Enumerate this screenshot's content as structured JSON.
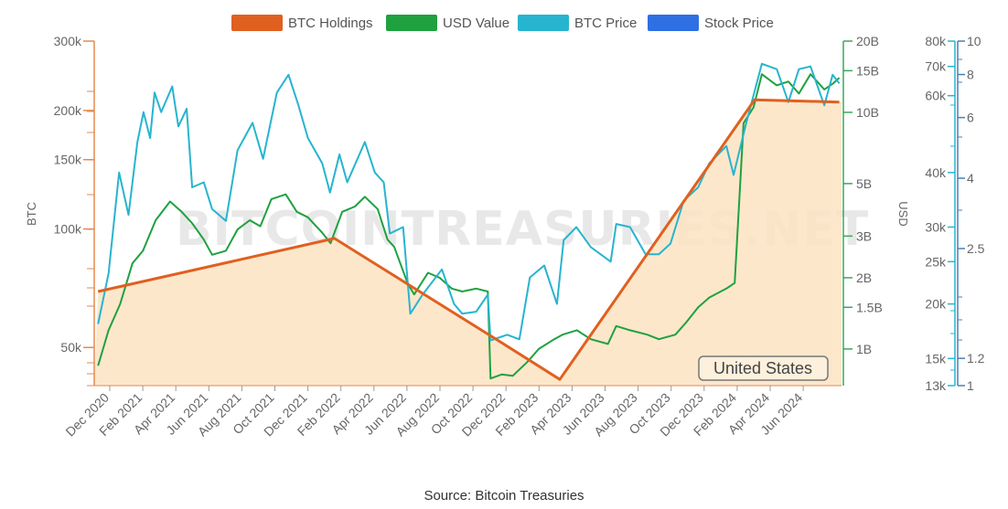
{
  "caption": "Source: Bitcoin Treasuries",
  "watermark": "BITCOINTREASURIES.NET",
  "badge": "United States",
  "legend": [
    {
      "label": "BTC Holdings",
      "color": "#e0601f"
    },
    {
      "label": "USD Value",
      "color": "#1fa140"
    },
    {
      "label": "BTC Price",
      "color": "#27b4cf"
    },
    {
      "label": "Stock Price",
      "color": "#2f6fe4"
    }
  ],
  "chart_data": {
    "type": "line",
    "x_tick_labels": [
      "Dec 2020",
      "Feb 2021",
      "Apr 2021",
      "Jun 2021",
      "Aug 2021",
      "Oct 2021",
      "Dec 2021",
      "Feb 2022",
      "Apr 2022",
      "Jun 2022",
      "Aug 2022",
      "Oct 2022",
      "Dec 2022",
      "Feb 2023",
      "Apr 2023",
      "Jun 2023",
      "Aug 2023",
      "Oct 2023",
      "Dec 2023",
      "Feb 2024",
      "Apr 2024",
      "Jun 2024"
    ],
    "axes": {
      "btc": {
        "title": "BTC",
        "scale": "log",
        "range": [
          40000,
          300000
        ],
        "ticks": [
          {
            "v": 50000,
            "label": "50k"
          },
          {
            "v": 100000,
            "label": "100k"
          },
          {
            "v": 150000,
            "label": "150k"
          },
          {
            "v": 200000,
            "label": "200k"
          },
          {
            "v": 300000,
            "label": "300k"
          }
        ]
      },
      "usd": {
        "title": "USD",
        "scale": "log",
        "range": [
          700000000,
          20000000000
        ],
        "ticks": [
          {
            "v": 1000000000,
            "label": "1B"
          },
          {
            "v": 1500000000,
            "label": "1.5B"
          },
          {
            "v": 2000000000,
            "label": "2B"
          },
          {
            "v": 3000000000,
            "label": "3B"
          },
          {
            "v": 5000000000,
            "label": "5B"
          },
          {
            "v": 10000000000,
            "label": "10B"
          },
          {
            "v": 15000000000,
            "label": "15B"
          },
          {
            "v": 20000000000,
            "label": "20B"
          }
        ]
      },
      "btc_price": {
        "scale": "log",
        "range": [
          13000,
          80000
        ],
        "ticks": [
          {
            "v": 13000,
            "label": "13k"
          },
          {
            "v": 15000,
            "label": "15k"
          },
          {
            "v": 20000,
            "label": "20k"
          },
          {
            "v": 25000,
            "label": "25k"
          },
          {
            "v": 30000,
            "label": "30k"
          },
          {
            "v": 40000,
            "label": "40k"
          },
          {
            "v": 60000,
            "label": "60k"
          },
          {
            "v": 70000,
            "label": "70k"
          },
          {
            "v": 80000,
            "label": "80k"
          }
        ]
      },
      "stock": {
        "scale": "log",
        "range": [
          1,
          10
        ],
        "ticks": [
          {
            "v": 1,
            "label": "1"
          },
          {
            "v": 1.2,
            "label": "1.2"
          },
          {
            "v": 2.5,
            "label": "2.5"
          },
          {
            "v": 4,
            "label": "4"
          },
          {
            "v": 6,
            "label": "6"
          },
          {
            "v": 8,
            "label": "8"
          },
          {
            "v": 10,
            "label": "10"
          }
        ]
      }
    },
    "series": [
      {
        "name": "BTC Holdings",
        "axis": "btc",
        "color": "#e0601f",
        "x": [
          "2020-12-01",
          "2022-02-01",
          "2022-12-01",
          "2023-03-15",
          "2024-03-01",
          "2024-08-01"
        ],
        "y": [
          69370,
          94636,
          51326,
          41490,
          212847,
          210000
        ]
      },
      {
        "name": "USD Value",
        "axis": "usd",
        "color": "#1fa140",
        "x": [
          "2020-12-01",
          "2020-12-20",
          "2021-01-10",
          "2021-02-01",
          "2021-02-20",
          "2021-03-15",
          "2021-04-10",
          "2021-05-01",
          "2021-05-20",
          "2021-06-10",
          "2021-06-25",
          "2021-07-20",
          "2021-08-10",
          "2021-09-01",
          "2021-09-20",
          "2021-10-10",
          "2021-11-05",
          "2021-11-25",
          "2021-12-15",
          "2022-01-10",
          "2022-01-25",
          "2022-02-15",
          "2022-03-10",
          "2022-03-28",
          "2022-04-20",
          "2022-05-08",
          "2022-05-20",
          "2022-06-13",
          "2022-06-25",
          "2022-07-20",
          "2022-08-10",
          "2022-09-01",
          "2022-09-20",
          "2022-10-15",
          "2022-11-05",
          "2022-11-10",
          "2022-11-30",
          "2022-12-20",
          "2023-01-15",
          "2023-02-05",
          "2023-03-05",
          "2023-03-20",
          "2023-04-15",
          "2023-05-10",
          "2023-06-10",
          "2023-06-25",
          "2023-07-20",
          "2023-08-20",
          "2023-09-10",
          "2023-10-10",
          "2023-10-30",
          "2023-11-20",
          "2023-12-10",
          "2024-01-10",
          "2024-01-25",
          "2024-02-10",
          "2024-02-28",
          "2024-03-14",
          "2024-04-10",
          "2024-05-01",
          "2024-05-20",
          "2024-06-10",
          "2024-07-05",
          "2024-07-20",
          "2024-08-01"
        ],
        "y": [
          850000000,
          1200000000,
          1550000000,
          2300000000,
          2600000000,
          3500000000,
          4200000000,
          3800000000,
          3400000000,
          2900000000,
          2500000000,
          2600000000,
          3200000000,
          3500000000,
          3300000000,
          4300000000,
          4500000000,
          3800000000,
          3600000000,
          3100000000,
          2800000000,
          3800000000,
          4000000000,
          4400000000,
          3900000000,
          2900000000,
          2700000000,
          1900000000,
          1700000000,
          2100000000,
          2000000000,
          1800000000,
          1750000000,
          1800000000,
          1750000000,
          750000000,
          780000000,
          770000000,
          880000000,
          1000000000,
          1100000000,
          1150000000,
          1200000000,
          1100000000,
          1050000000,
          1250000000,
          1200000000,
          1150000000,
          1100000000,
          1150000000,
          1300000000,
          1500000000,
          1650000000,
          1800000000,
          1900000000,
          9000000000,
          10500000000,
          14500000000,
          13000000000,
          13500000000,
          12000000000,
          14500000000,
          12500000000,
          13200000000,
          14000000000
        ]
      },
      {
        "name": "BTC Price",
        "axis": "btc_price",
        "color": "#27b4cf",
        "x": [
          "2020-12-01",
          "2020-12-20",
          "2021-01-08",
          "2021-01-25",
          "2021-02-10",
          "2021-02-21",
          "2021-03-05",
          "2021-03-13",
          "2021-03-25",
          "2021-04-14",
          "2021-04-25",
          "2021-05-10",
          "2021-05-20",
          "2021-06-10",
          "2021-06-25",
          "2021-07-20",
          "2021-08-10",
          "2021-09-06",
          "2021-09-25",
          "2021-10-20",
          "2021-11-10",
          "2021-11-28",
          "2021-12-15",
          "2022-01-10",
          "2022-01-24",
          "2022-02-10",
          "2022-02-24",
          "2022-03-28",
          "2022-04-15",
          "2022-05-01",
          "2022-05-12",
          "2022-06-05",
          "2022-06-18",
          "2022-07-10",
          "2022-08-14",
          "2022-09-05",
          "2022-09-20",
          "2022-10-15",
          "2022-11-05",
          "2022-11-10",
          "2022-12-10",
          "2023-01-01",
          "2023-01-20",
          "2023-02-15",
          "2023-03-10",
          "2023-03-22",
          "2023-04-14",
          "2023-05-10",
          "2023-06-15",
          "2023-06-25",
          "2023-07-20",
          "2023-08-17",
          "2023-09-10",
          "2023-10-01",
          "2023-10-25",
          "2023-11-20",
          "2023-12-10",
          "2024-01-10",
          "2024-01-23",
          "2024-02-15",
          "2024-03-14",
          "2024-04-10",
          "2024-05-01",
          "2024-05-20",
          "2024-06-10",
          "2024-07-05",
          "2024-07-20",
          "2024-08-01"
        ],
        "y": [
          18000,
          23500,
          40000,
          32000,
          47000,
          55000,
          48000,
          61000,
          55000,
          63000,
          51000,
          56000,
          37000,
          38000,
          33000,
          31000,
          45000,
          52000,
          43000,
          61000,
          67000,
          57000,
          48000,
          42000,
          36000,
          44000,
          38000,
          47000,
          40000,
          38000,
          29000,
          30000,
          19000,
          21000,
          24000,
          20000,
          19000,
          19200,
          21000,
          16500,
          17000,
          16600,
          23000,
          24500,
          20000,
          28000,
          30000,
          27000,
          25000,
          30500,
          30000,
          26000,
          26000,
          27500,
          34500,
          37000,
          42000,
          46000,
          39500,
          52000,
          71000,
          69000,
          58000,
          69000,
          70000,
          57000,
          67000,
          64000
        ]
      },
      {
        "name": "Stock Price",
        "axis": "stock",
        "color": "#2f6fe4",
        "x": [],
        "y": []
      }
    ]
  }
}
